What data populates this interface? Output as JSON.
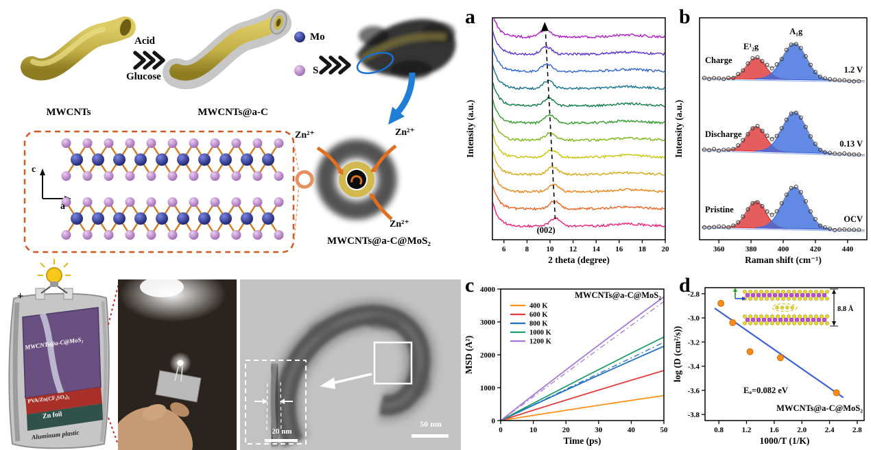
{
  "panel_labels": {
    "a": "a",
    "b": "b",
    "c": "c",
    "d": "d"
  },
  "schematic": {
    "step1_label": "MWCNTs",
    "arrow_top": "Acid",
    "arrow_bottom": "Glucose",
    "step2_label": "MWCNTs@a-C",
    "legend": {
      "mo": "Mo",
      "s": "S"
    },
    "axes": {
      "c": "c",
      "a": "a"
    },
    "zn_ion": "Zn²⁺",
    "product_label": "MWCNTs@a-C@MoS₂",
    "battery": {
      "plus": "+",
      "cathode": "MWCNTs@a-C@MoS₂",
      "electrolyte": "PVA/Zn(CF₃SO₃)₂",
      "anode": "Zn foil",
      "case": "Aluminum plastic"
    },
    "tem": {
      "scale_inner": "20 nm",
      "scale_outer": "50 nm"
    }
  },
  "chart_data": [
    {
      "id": "xrd",
      "type": "line",
      "panel": "a",
      "xlabel": "2 theta (degree)",
      "ylabel": "Intensity (a.u.)",
      "xlim": [
        5,
        20
      ],
      "xticks": [
        6,
        8,
        10,
        12,
        14,
        16,
        18,
        20
      ],
      "annotation": "(002)",
      "peak_shift": {
        "from_2theta": 10.45,
        "to_2theta": 9.6
      },
      "curves": [
        {
          "color": "#b019c9",
          "peak": 9.6
        },
        {
          "color": "#5b2fd5",
          "peak": 9.68
        },
        {
          "color": "#2b62d9",
          "peak": 9.75
        },
        {
          "color": "#13718f",
          "peak": 9.83
        },
        {
          "color": "#0e7d45",
          "peak": 9.91
        },
        {
          "color": "#2f9e28",
          "peak": 9.98
        },
        {
          "color": "#7ab814",
          "peak": 10.06
        },
        {
          "color": "#c5c50a",
          "peak": 10.14
        },
        {
          "color": "#d9a711",
          "peak": 10.22
        },
        {
          "color": "#eb8414",
          "peak": 10.29
        },
        {
          "color": "#f2611d",
          "peak": 10.37
        },
        {
          "color": "#ef1f78",
          "peak": 10.45
        }
      ]
    },
    {
      "id": "raman",
      "type": "line",
      "panel": "b",
      "xlabel": "Raman shift (cm⁻¹)",
      "ylabel": "Intensity (a.u.)",
      "xlim": [
        348,
        452
      ],
      "xticks": [
        360,
        380,
        400,
        420,
        440
      ],
      "peaks": {
        "e2g": {
          "label": "E¹₂g",
          "center": 383,
          "sigma": 6,
          "color": "#e03434"
        },
        "a1g": {
          "label": "A₁g",
          "center": 407,
          "sigma": 7.5,
          "color": "#3b6bdd"
        }
      },
      "spectra": [
        {
          "name": "Charge",
          "voltage": "1.2 V",
          "e2g_h": 0.5,
          "a1g_h": 0.85
        },
        {
          "name": "Discharge",
          "voltage": "0.13 V",
          "e2g_h": 0.58,
          "a1g_h": 0.95
        },
        {
          "name": "Pristine",
          "voltage": "OCV",
          "e2g_h": 0.62,
          "a1g_h": 0.98
        }
      ]
    },
    {
      "id": "msd",
      "type": "line",
      "panel": "c",
      "title": "MWCNTs@a-C@MoS₂",
      "xlabel": "Time (ps)",
      "ylabel": "MSD (A²)",
      "xlim": [
        0,
        50
      ],
      "ylim": [
        0,
        4000
      ],
      "xticks": [
        0,
        10,
        20,
        30,
        40,
        50
      ],
      "yticks": [
        0,
        1000,
        2000,
        3000,
        4000
      ],
      "series": [
        {
          "name": "400 K",
          "color": "#ff9015",
          "msd_at_50ps": 760
        },
        {
          "name": "600 K",
          "color": "#e23b3b",
          "msd_at_50ps": 1520
        },
        {
          "name": "800 K",
          "color": "#1f6fc4",
          "msd_at_50ps": 2260,
          "fit_at_50ps": 2380
        },
        {
          "name": "1000 K",
          "color": "#1d9e6b",
          "msd_at_50ps": 2540
        },
        {
          "name": "1200 K",
          "color": "#a878d8",
          "msd_at_50ps": 3760,
          "fit_at_50ps": 3620
        }
      ]
    },
    {
      "id": "arrhenius",
      "type": "scatter",
      "panel": "d",
      "xlabel": "1000/T (1/K)",
      "ylabel": "log (D (cm²/s))",
      "xlim": [
        0.6,
        2.9
      ],
      "ylim": [
        -3.85,
        -2.75
      ],
      "xticks": [
        0.8,
        1.2,
        1.6,
        2.0,
        2.4,
        2.8
      ],
      "yticks": [
        -2.8,
        -3.0,
        -3.2,
        -3.4,
        -3.6,
        -3.8
      ],
      "point_color": "#ff8c1a",
      "points": [
        [
          0.83,
          -2.88
        ],
        [
          1.0,
          -3.04
        ],
        [
          1.25,
          -3.28
        ],
        [
          1.69,
          -3.33
        ],
        [
          2.5,
          -3.62
        ]
      ],
      "fit": {
        "x1": 0.74,
        "y1": -2.92,
        "x2": 2.6,
        "y2": -3.66,
        "color": "#3b5fd9"
      },
      "ea_label": "Eₐ=0.082 eV",
      "sample_label": "MWCNTs@a-C@MoS₂",
      "inset_label": "8.8 Å"
    }
  ]
}
